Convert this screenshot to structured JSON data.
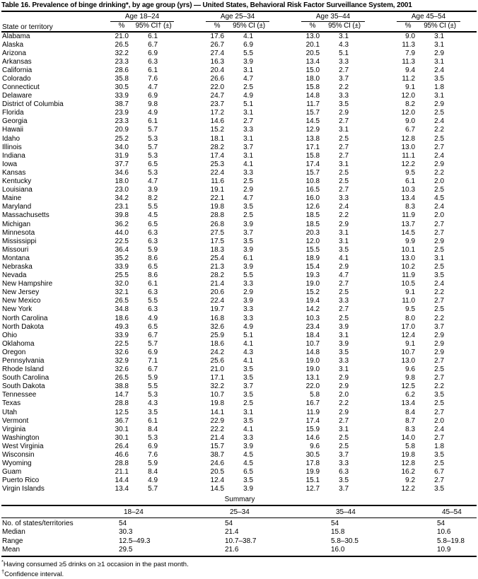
{
  "title": "Table 16. Prevalence of binge drinking*, by age group (yrs) — United States, Behavioral Risk Factor Surveillance System, 2001",
  "header": {
    "state_col": "State or territory",
    "groups": [
      {
        "label": "Age 18–24",
        "pct": "%",
        "ci": "95% CI† (±)"
      },
      {
        "label": "Age 25–34",
        "pct": "%",
        "ci": "95% CI (±)"
      },
      {
        "label": "Age 35–44",
        "pct": "%",
        "ci": "95% CI (±)"
      },
      {
        "label": "Age 45–54",
        "pct": "%",
        "ci": "95% CI (±)"
      }
    ]
  },
  "rows": [
    {
      "state": "Alabama",
      "values": [
        "21.0",
        "6.1",
        "17.6",
        "4.1",
        "13.0",
        "3.1",
        "9.0",
        "3.1"
      ]
    },
    {
      "state": "Alaska",
      "values": [
        "26.5",
        "6.7",
        "26.7",
        "6.9",
        "20.1",
        "4.3",
        "11.3",
        "3.1"
      ]
    },
    {
      "state": "Arizona",
      "values": [
        "32.2",
        "6.9",
        "27.4",
        "5.5",
        "20.5",
        "5.1",
        "7.9",
        "2.9"
      ]
    },
    {
      "state": "Arkansas",
      "values": [
        "23.3",
        "6.3",
        "16.3",
        "3.9",
        "13.4",
        "3.3",
        "11.3",
        "3.1"
      ]
    },
    {
      "state": "California",
      "values": [
        "28.6",
        "6.1",
        "20.4",
        "3.1",
        "15.0",
        "2.7",
        "9.4",
        "2.4"
      ]
    },
    {
      "state": "Colorado",
      "values": [
        "35.8",
        "7.6",
        "26.6",
        "4.7",
        "18.0",
        "3.7",
        "11.2",
        "3.5"
      ]
    },
    {
      "state": "Connecticut",
      "values": [
        "30.5",
        "4.7",
        "22.0",
        "2.5",
        "15.8",
        "2.2",
        "9.1",
        "1.8"
      ]
    },
    {
      "state": "Delaware",
      "values": [
        "33.9",
        "6.9",
        "24.7",
        "4.9",
        "14.8",
        "3.3",
        "12.0",
        "3.1"
      ]
    },
    {
      "state": "District of Columbia",
      "values": [
        "38.7",
        "9.8",
        "23.7",
        "5.1",
        "11.7",
        "3.5",
        "8.2",
        "2.9"
      ]
    },
    {
      "state": "Florida",
      "values": [
        "23.9",
        "4.9",
        "17.2",
        "3.1",
        "15.7",
        "2.9",
        "12.0",
        "2.5"
      ]
    },
    {
      "state": "Georgia",
      "values": [
        "23.3",
        "6.1",
        "14.6",
        "2.7",
        "14.5",
        "2.7",
        "9.0",
        "2.4"
      ]
    },
    {
      "state": "Hawaii",
      "values": [
        "20.9",
        "5.7",
        "15.2",
        "3.3",
        "12.9",
        "3.1",
        "6.7",
        "2.2"
      ]
    },
    {
      "state": "Idaho",
      "values": [
        "25.2",
        "5.3",
        "18.1",
        "3.1",
        "13.8",
        "2.5",
        "12.8",
        "2.5"
      ]
    },
    {
      "state": "Illinois",
      "values": [
        "34.0",
        "5.7",
        "28.2",
        "3.7",
        "17.1",
        "2.7",
        "13.0",
        "2.7"
      ]
    },
    {
      "state": "Indiana",
      "values": [
        "31.9",
        "5.3",
        "17.4",
        "3.1",
        "15.8",
        "2.7",
        "11.1",
        "2.4"
      ]
    },
    {
      "state": "Iowa",
      "values": [
        "37.7",
        "6.5",
        "25.3",
        "4.1",
        "17.4",
        "3.1",
        "12.2",
        "2.9"
      ]
    },
    {
      "state": "Kansas",
      "values": [
        "34.6",
        "5.3",
        "22.4",
        "3.3",
        "15.7",
        "2.5",
        "9.5",
        "2.2"
      ]
    },
    {
      "state": "Kentucky",
      "values": [
        "18.0",
        "4.7",
        "11.6",
        "2.5",
        "10.8",
        "2.5",
        "6.1",
        "2.0"
      ]
    },
    {
      "state": "Louisiana",
      "values": [
        "23.0",
        "3.9",
        "19.1",
        "2.9",
        "16.5",
        "2.7",
        "10.3",
        "2.5"
      ]
    },
    {
      "state": "Maine",
      "values": [
        "34.2",
        "8.2",
        "22.1",
        "4.7",
        "16.0",
        "3.3",
        "13.4",
        "4.5"
      ]
    },
    {
      "state": "Maryland",
      "values": [
        "23.1",
        "5.5",
        "19.8",
        "3.5",
        "12.6",
        "2.4",
        "8.3",
        "2.4"
      ]
    },
    {
      "state": "Massachusetts",
      "values": [
        "39.8",
        "4.5",
        "28.8",
        "2.5",
        "18.5",
        "2.2",
        "11.9",
        "2.0"
      ]
    },
    {
      "state": "Michigan",
      "values": [
        "36.2",
        "6.5",
        "26.8",
        "3.9",
        "18.5",
        "2.9",
        "13.7",
        "2.7"
      ]
    },
    {
      "state": "Minnesota",
      "values": [
        "44.0",
        "6.3",
        "27.5",
        "3.7",
        "20.3",
        "3.1",
        "14.5",
        "2.7"
      ]
    },
    {
      "state": "Mississippi",
      "values": [
        "22.5",
        "6.3",
        "17.5",
        "3.5",
        "12.0",
        "3.1",
        "9.9",
        "2.9"
      ]
    },
    {
      "state": "Missouri",
      "values": [
        "36.4",
        "5.9",
        "18.3",
        "3.9",
        "15.5",
        "3.5",
        "10.1",
        "2.5"
      ]
    },
    {
      "state": "Montana",
      "values": [
        "35.2",
        "8.6",
        "25.4",
        "6.1",
        "18.9",
        "4.1",
        "13.0",
        "3.1"
      ]
    },
    {
      "state": "Nebraska",
      "values": [
        "33.9",
        "6.5",
        "21.3",
        "3.9",
        "15.4",
        "2.9",
        "10.2",
        "2.5"
      ]
    },
    {
      "state": "Nevada",
      "values": [
        "25.5",
        "8.6",
        "28.2",
        "5.5",
        "19.3",
        "4.7",
        "11.9",
        "3.5"
      ]
    },
    {
      "state": "New Hampshire",
      "values": [
        "32.0",
        "6.1",
        "21.4",
        "3.3",
        "19.0",
        "2.7",
        "10.5",
        "2.4"
      ]
    },
    {
      "state": "New Jersey",
      "values": [
        "32.1",
        "6.3",
        "20.6",
        "2.9",
        "15.2",
        "2.5",
        "9.1",
        "2.2"
      ]
    },
    {
      "state": "New Mexico",
      "values": [
        "26.5",
        "5.5",
        "22.4",
        "3.9",
        "19.4",
        "3.3",
        "11.0",
        "2.7"
      ]
    },
    {
      "state": "New York",
      "values": [
        "34.8",
        "6.3",
        "19.7",
        "3.3",
        "14.2",
        "2.7",
        "9.5",
        "2.5"
      ]
    },
    {
      "state": "North Carolina",
      "values": [
        "18.6",
        "4.9",
        "16.8",
        "3.3",
        "10.3",
        "2.5",
        "8.0",
        "2.2"
      ]
    },
    {
      "state": "North Dakota",
      "values": [
        "49.3",
        "6.5",
        "32.6",
        "4.9",
        "23.4",
        "3.9",
        "17.0",
        "3.7"
      ]
    },
    {
      "state": "Ohio",
      "values": [
        "33.9",
        "6.7",
        "25.9",
        "5.1",
        "18.4",
        "3.1",
        "12.4",
        "2.9"
      ]
    },
    {
      "state": "Oklahoma",
      "values": [
        "22.5",
        "5.7",
        "18.6",
        "4.1",
        "10.7",
        "3.9",
        "9.1",
        "2.9"
      ]
    },
    {
      "state": "Oregon",
      "values": [
        "32.6",
        "6.9",
        "24.2",
        "4.3",
        "14.8",
        "3.5",
        "10.7",
        "2.9"
      ]
    },
    {
      "state": "Pennsylvania",
      "values": [
        "32.9",
        "7.1",
        "25.6",
        "4.1",
        "19.0",
        "3.3",
        "13.0",
        "2.7"
      ]
    },
    {
      "state": "Rhode Island",
      "values": [
        "32.6",
        "6.7",
        "21.0",
        "3.5",
        "19.0",
        "3.1",
        "9.6",
        "2.5"
      ]
    },
    {
      "state": "South Carolina",
      "values": [
        "26.5",
        "5.9",
        "17.1",
        "3.5",
        "13.1",
        "2.9",
        "9.8",
        "2.7"
      ]
    },
    {
      "state": "South Dakota",
      "values": [
        "38.8",
        "5.5",
        "32.2",
        "3.7",
        "22.0",
        "2.9",
        "12.5",
        "2.2"
      ]
    },
    {
      "state": "Tennessee",
      "values": [
        "14.7",
        "5.3",
        "10.7",
        "3.5",
        "5.8",
        "2.0",
        "6.2",
        "3.5"
      ]
    },
    {
      "state": "Texas",
      "values": [
        "28.8",
        "4.3",
        "19.8",
        "2.5",
        "16.7",
        "2.2",
        "13.4",
        "2.5"
      ]
    },
    {
      "state": "Utah",
      "values": [
        "12.5",
        "3.5",
        "14.1",
        "3.1",
        "11.9",
        "2.9",
        "8.4",
        "2.7"
      ]
    },
    {
      "state": "Vermont",
      "values": [
        "36.7",
        "6.1",
        "22.9",
        "3.5",
        "17.4",
        "2.7",
        "8.7",
        "2.0"
      ]
    },
    {
      "state": "Virginia",
      "values": [
        "30.1",
        "8.4",
        "22.2",
        "4.1",
        "15.9",
        "3.1",
        "8.3",
        "2.4"
      ]
    },
    {
      "state": "Washington",
      "values": [
        "30.1",
        "5.3",
        "21.4",
        "3.3",
        "14.6",
        "2.5",
        "14.0",
        "2.7"
      ]
    },
    {
      "state": "West Virginia",
      "values": [
        "26.4",
        "6.9",
        "15.7",
        "3.9",
        "9.6",
        "2.5",
        "5.8",
        "1.8"
      ]
    },
    {
      "state": "Wisconsin",
      "values": [
        "46.6",
        "7.6",
        "38.7",
        "4.5",
        "30.5",
        "3.7",
        "19.8",
        "3.5"
      ]
    },
    {
      "state": "Wyoming",
      "values": [
        "28.8",
        "5.9",
        "24.6",
        "4.5",
        "17.8",
        "3.3",
        "12.8",
        "2.5"
      ]
    },
    {
      "state": "Guam",
      "values": [
        "21.1",
        "8.4",
        "20.5",
        "6.5",
        "19.9",
        "6.3",
        "16.2",
        "6.7"
      ]
    },
    {
      "state": "Puerto Rico",
      "values": [
        "14.4",
        "4.9",
        "12.4",
        "3.5",
        "15.1",
        "3.5",
        "9.2",
        "2.7"
      ]
    },
    {
      "state": "Virgin Islands",
      "values": [
        "13.4",
        "5.7",
        "14.5",
        "3.9",
        "12.7",
        "3.7",
        "12.2",
        "3.5"
      ]
    }
  ],
  "summary": {
    "section_title": "Summary",
    "columns": [
      "18–24",
      "25–34",
      "35–44",
      "45–54"
    ],
    "rows": [
      {
        "label": "No. of states/territories",
        "values": [
          "54",
          "54",
          "54",
          "54"
        ]
      },
      {
        "label": "Median",
        "values": [
          "30.3",
          "21.4",
          "15.8",
          "10.6"
        ]
      },
      {
        "label": "Range",
        "values": [
          "12.5–49.3",
          "10.7–38.7",
          "5.8–30.5",
          "5.8–19.8"
        ]
      },
      {
        "label": "Mean",
        "values": [
          "29.5",
          "21.6",
          "16.0",
          "10.9"
        ]
      }
    ]
  },
  "footnotes": [
    {
      "marker": "*",
      "text": "Having consumed ≥5 drinks on ≥1 occasion in the past month."
    },
    {
      "marker": "†",
      "text": "Confidence interval."
    }
  ]
}
